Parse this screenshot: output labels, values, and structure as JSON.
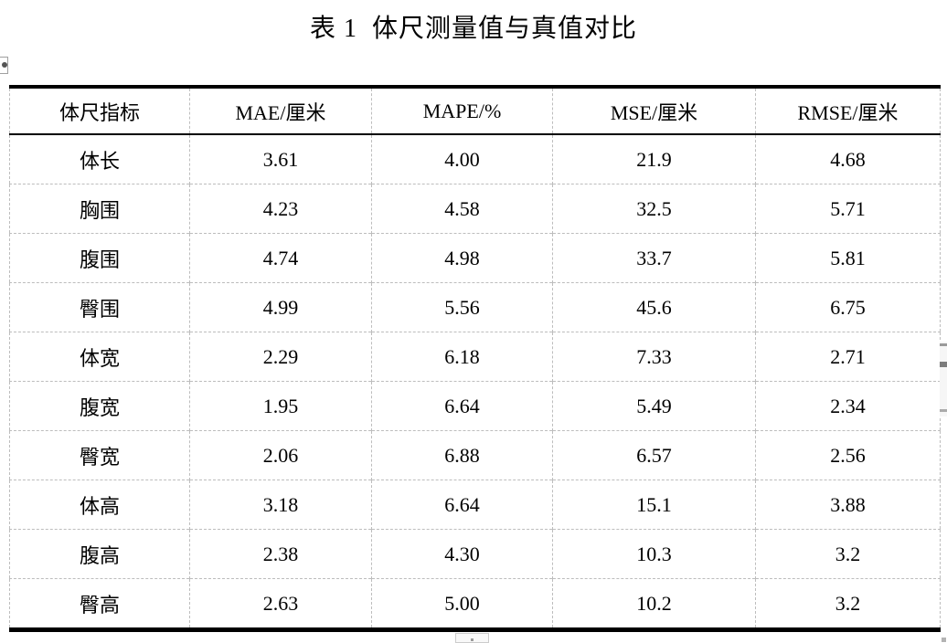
{
  "title": "表 1  体尺测量值与真值对比",
  "table": {
    "columns": [
      "体尺指标",
      "MAE/厘米",
      "MAPE/%",
      "MSE/厘米",
      "RMSE/厘米"
    ],
    "rows": [
      {
        "label": "体长",
        "values": [
          "3.61",
          "4.00",
          "21.9",
          "4.68"
        ]
      },
      {
        "label": "胸围",
        "values": [
          "4.23",
          "4.58",
          "32.5",
          "5.71"
        ]
      },
      {
        "label": "腹围",
        "values": [
          "4.74",
          "4.98",
          "33.7",
          "5.81"
        ]
      },
      {
        "label": "臀围",
        "values": [
          "4.99",
          "5.56",
          "45.6",
          "6.75"
        ]
      },
      {
        "label": "体宽",
        "values": [
          "2.29",
          "6.18",
          "7.33",
          "2.71"
        ]
      },
      {
        "label": "腹宽",
        "values": [
          "1.95",
          "6.64",
          "5.49",
          "2.34"
        ]
      },
      {
        "label": "臀宽",
        "values": [
          "2.06",
          "6.88",
          "6.57",
          "2.56"
        ]
      },
      {
        "label": "体高",
        "values": [
          "3.18",
          "6.64",
          "15.1",
          "3.88"
        ]
      },
      {
        "label": "腹高",
        "values": [
          "2.38",
          "4.30",
          "10.3",
          "3.2"
        ]
      },
      {
        "label": "臀高",
        "values": [
          "2.63",
          "5.00",
          "10.2",
          "3.2"
        ]
      }
    ]
  },
  "colors": {
    "strong_border": "#000000",
    "grid_dashed": "#bdbdbd",
    "background": "#ffffff",
    "text": "#000000"
  }
}
